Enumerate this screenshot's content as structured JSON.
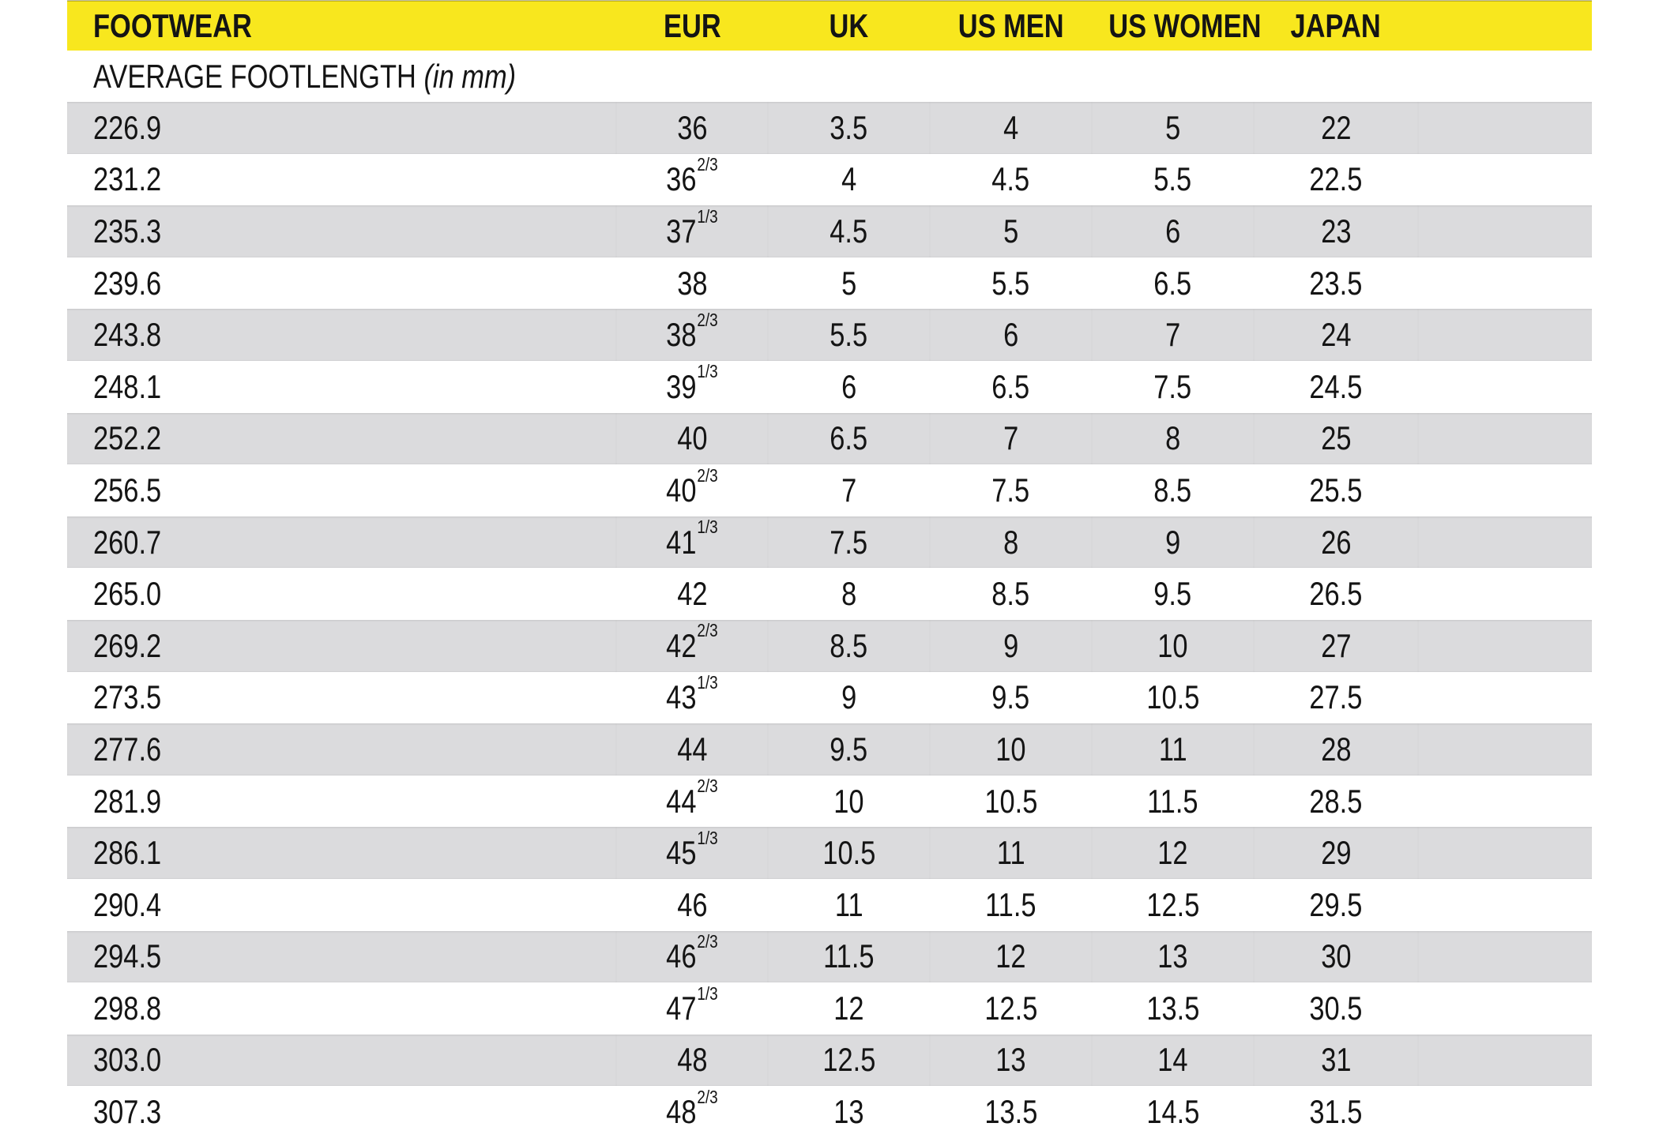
{
  "colors": {
    "header_yellow": "#F8E71E",
    "row_gray": "#DBDBDD",
    "text": "#141414",
    "background": "#FFFFFF"
  },
  "header": {
    "columns": [
      "FOOTWEAR",
      "EUR",
      "UK",
      "US MEN",
      "US WOMEN",
      "JAPAN"
    ]
  },
  "subheader": {
    "label": "AVERAGE FOOTLENGTH",
    "unit_note": "(in mm)"
  },
  "table": {
    "rows": [
      {
        "footlength": "226.9",
        "eur": "36",
        "eur_sup": "",
        "uk": "3.5",
        "us_men": "4",
        "us_women": "5",
        "japan": "22"
      },
      {
        "footlength": "231.2",
        "eur": "36",
        "eur_sup": "2/3",
        "uk": "4",
        "us_men": "4.5",
        "us_women": "5.5",
        "japan": "22.5"
      },
      {
        "footlength": "235.3",
        "eur": "37",
        "eur_sup": "1/3",
        "uk": "4.5",
        "us_men": "5",
        "us_women": "6",
        "japan": "23"
      },
      {
        "footlength": "239.6",
        "eur": "38",
        "eur_sup": "",
        "uk": "5",
        "us_men": "5.5",
        "us_women": "6.5",
        "japan": "23.5"
      },
      {
        "footlength": "243.8",
        "eur": "38",
        "eur_sup": "2/3",
        "uk": "5.5",
        "us_men": "6",
        "us_women": "7",
        "japan": "24"
      },
      {
        "footlength": "248.1",
        "eur": "39",
        "eur_sup": "1/3",
        "uk": "6",
        "us_men": "6.5",
        "us_women": "7.5",
        "japan": "24.5"
      },
      {
        "footlength": "252.2",
        "eur": "40",
        "eur_sup": "",
        "uk": "6.5",
        "us_men": "7",
        "us_women": "8",
        "japan": "25"
      },
      {
        "footlength": "256.5",
        "eur": "40",
        "eur_sup": "2/3",
        "uk": "7",
        "us_men": "7.5",
        "us_women": "8.5",
        "japan": "25.5"
      },
      {
        "footlength": "260.7",
        "eur": "41",
        "eur_sup": "1/3",
        "uk": "7.5",
        "us_men": "8",
        "us_women": "9",
        "japan": "26"
      },
      {
        "footlength": "265.0",
        "eur": "42",
        "eur_sup": "",
        "uk": "8",
        "us_men": "8.5",
        "us_women": "9.5",
        "japan": "26.5"
      },
      {
        "footlength": "269.2",
        "eur": "42",
        "eur_sup": "2/3",
        "uk": "8.5",
        "us_men": "9",
        "us_women": "10",
        "japan": "27"
      },
      {
        "footlength": "273.5",
        "eur": "43",
        "eur_sup": "1/3",
        "uk": "9",
        "us_men": "9.5",
        "us_women": "10.5",
        "japan": "27.5"
      },
      {
        "footlength": "277.6",
        "eur": "44",
        "eur_sup": "",
        "uk": "9.5",
        "us_men": "10",
        "us_women": "11",
        "japan": "28"
      },
      {
        "footlength": "281.9",
        "eur": "44",
        "eur_sup": "2/3",
        "uk": "10",
        "us_men": "10.5",
        "us_women": "11.5",
        "japan": "28.5"
      },
      {
        "footlength": "286.1",
        "eur": "45",
        "eur_sup": "1/3",
        "uk": "10.5",
        "us_men": "11",
        "us_women": "12",
        "japan": "29"
      },
      {
        "footlength": "290.4",
        "eur": "46",
        "eur_sup": "",
        "uk": "11",
        "us_men": "11.5",
        "us_women": "12.5",
        "japan": "29.5"
      },
      {
        "footlength": "294.5",
        "eur": "46",
        "eur_sup": "2/3",
        "uk": "11.5",
        "us_men": "12",
        "us_women": "13",
        "japan": "30"
      },
      {
        "footlength": "298.8",
        "eur": "47",
        "eur_sup": "1/3",
        "uk": "12",
        "us_men": "12.5",
        "us_women": "13.5",
        "japan": "30.5"
      },
      {
        "footlength": "303.0",
        "eur": "48",
        "eur_sup": "",
        "uk": "12.5",
        "us_men": "13",
        "us_women": "14",
        "japan": "31"
      },
      {
        "footlength": "307.3",
        "eur": "48",
        "eur_sup": "2/3",
        "uk": "13",
        "us_men": "13.5",
        "us_women": "14.5",
        "japan": "31.5"
      }
    ]
  }
}
